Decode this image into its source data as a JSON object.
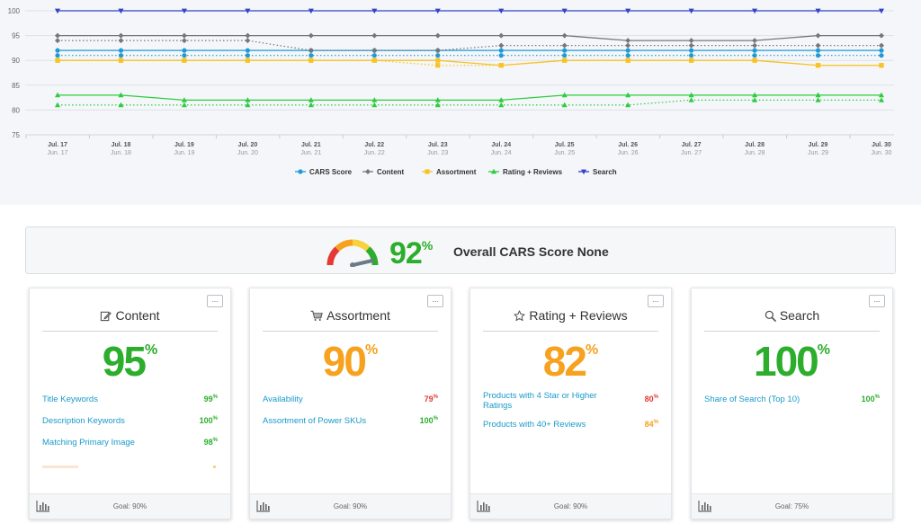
{
  "chart_data": {
    "type": "line",
    "x": [
      "Jul. 17",
      "Jul. 18",
      "Jul. 19",
      "Jul. 20",
      "Jul. 21",
      "Jul. 22",
      "Jul. 23",
      "Jul. 24",
      "Jul. 25",
      "Jul. 26",
      "Jul. 27",
      "Jul. 28",
      "Jul. 29",
      "Jul. 30"
    ],
    "x_compare": [
      "Jun. 17",
      "Jun. 18",
      "Jun. 19",
      "Jun. 20",
      "Jun. 21",
      "Jun. 22",
      "Jun. 23",
      "Jun. 24",
      "Jun. 25",
      "Jun. 26",
      "Jun. 27",
      "Jun. 28",
      "Jun. 29",
      "Jun. 30"
    ],
    "ylim": [
      75,
      100
    ],
    "yticks": [
      75,
      80,
      85,
      90,
      95,
      100
    ],
    "grid": true,
    "legend_position": "bottom",
    "series": [
      {
        "name": "CARS Score",
        "color": "#1f9ad6",
        "marker": "circle",
        "values": [
          92,
          92,
          92,
          92,
          92,
          92,
          92,
          92,
          92,
          92,
          92,
          92,
          92,
          92
        ],
        "compare": [
          91,
          91,
          91,
          91,
          91,
          91,
          91,
          91,
          91,
          91,
          91,
          91,
          91,
          91
        ]
      },
      {
        "name": "Content",
        "color": "#777777",
        "marker": "diamond",
        "values": [
          95,
          95,
          95,
          95,
          95,
          95,
          95,
          95,
          95,
          94,
          94,
          94,
          95,
          95
        ],
        "compare": [
          94,
          94,
          94,
          94,
          92,
          92,
          92,
          93,
          93,
          93,
          93,
          93,
          93,
          93
        ]
      },
      {
        "name": "Assortment",
        "color": "#f7c325",
        "marker": "square",
        "values": [
          90,
          90,
          90,
          90,
          90,
          90,
          90,
          89,
          90,
          90,
          90,
          90,
          89,
          89
        ],
        "compare": [
          90,
          90,
          90,
          90,
          90,
          90,
          89,
          89,
          90,
          90,
          90,
          90,
          89,
          89
        ]
      },
      {
        "name": "Rating + Reviews",
        "color": "#2ecc40",
        "marker": "triangle-up",
        "values": [
          83,
          83,
          82,
          82,
          82,
          82,
          82,
          82,
          83,
          83,
          83,
          83,
          83,
          83
        ],
        "compare": [
          81,
          81,
          81,
          81,
          81,
          81,
          81,
          81,
          81,
          81,
          82,
          82,
          82,
          82
        ]
      },
      {
        "name": "Search",
        "color": "#3342c7",
        "marker": "triangle-down",
        "values": [
          100,
          100,
          100,
          100,
          100,
          100,
          100,
          100,
          100,
          100,
          100,
          100,
          100,
          100
        ]
      }
    ]
  },
  "overall": {
    "percent": "92",
    "percent_sign": "%",
    "label": "Overall CARS Score None",
    "gauge_value": 0.92
  },
  "cards": [
    {
      "title": "Content",
      "icon": "edit-icon",
      "score": "95",
      "color": "#2cae2c",
      "metrics": [
        {
          "label": "Title Keywords",
          "value": "99",
          "color": "#2cae2c"
        },
        {
          "label": "Description Keywords",
          "value": "100",
          "color": "#2cae2c"
        },
        {
          "label": "Matching Primary Image",
          "value": "98",
          "color": "#2cae2c"
        }
      ],
      "goal": "Goal: 90%"
    },
    {
      "title": "Assortment",
      "icon": "cart-icon",
      "score": "90",
      "color": "#f6a21e",
      "metrics": [
        {
          "label": "Availability",
          "value": "79",
          "color": "#e53935"
        },
        {
          "label": "Assortment of Power SKUs",
          "value": "100",
          "color": "#2cae2c"
        }
      ],
      "goal": "Goal: 90%"
    },
    {
      "title": "Rating + Reviews",
      "icon": "star-icon",
      "score": "82",
      "color": "#f6a21e",
      "metrics": [
        {
          "label": "Products with 4 Star or Higher Ratings",
          "value": "80",
          "color": "#e53935"
        },
        {
          "label": "Products with 40+ Reviews",
          "value": "84",
          "color": "#f6a21e"
        }
      ],
      "goal": "Goal: 90%"
    },
    {
      "title": "Search",
      "icon": "search-icon",
      "score": "100",
      "color": "#2cae2c",
      "metrics": [
        {
          "label": "Share of Search (Top 10)",
          "value": "100",
          "color": "#2cae2c"
        }
      ],
      "goal": "Goal: 75%"
    }
  ],
  "menu_label": "...",
  "percent_sign": "%"
}
